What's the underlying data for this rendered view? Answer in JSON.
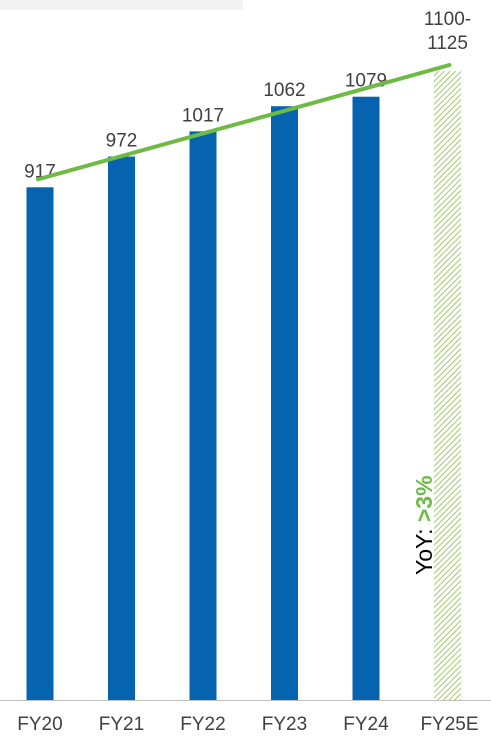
{
  "chart_data": {
    "type": "bar",
    "categories": [
      "FY20",
      "FY21",
      "FY22",
      "FY23",
      "FY24",
      "FY25E"
    ],
    "values": [
      917,
      972,
      1017,
      1062,
      1079,
      1125
    ],
    "estimate_range": [
      1100,
      1125
    ],
    "data_labels": [
      "917",
      "972",
      "1017",
      "1062",
      "1079",
      "1100-\n1125"
    ],
    "estimate_flags": [
      false,
      false,
      false,
      false,
      false,
      true
    ],
    "trend_line": {
      "from": 917,
      "to": 1125
    },
    "annotation": {
      "prefix": "YoY: ",
      "highlight": ">3%"
    },
    "title": "",
    "xlabel": "",
    "ylabel": "",
    "ylim": [
      0,
      1125
    ],
    "grid": false,
    "legend": "none",
    "colors": {
      "bar": "#0563b0",
      "estimate_hatch": "#9ecb6b",
      "trend": "#6dbb45",
      "highlight": "#6dbb45",
      "text": "#404040",
      "axis": "#bfbfbf"
    }
  }
}
